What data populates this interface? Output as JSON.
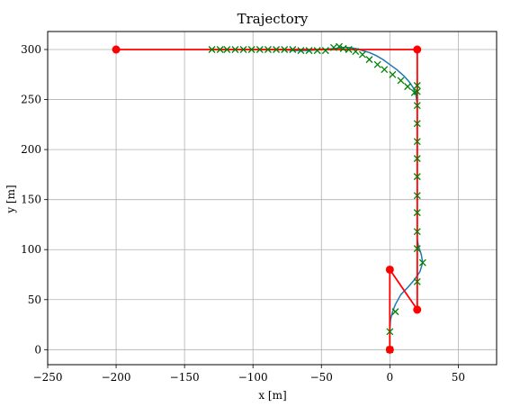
{
  "chart_data": {
    "type": "line",
    "title": "Trajectory",
    "xlabel": "x [m]",
    "ylabel": "y [m]",
    "xlim": [
      -250,
      78
    ],
    "ylim": [
      -15,
      318
    ],
    "xticks": [
      -250,
      -200,
      -150,
      -100,
      -50,
      0,
      50
    ],
    "yticks": [
      0,
      50,
      100,
      150,
      200,
      250,
      300
    ],
    "grid": true,
    "colors": {
      "red": "#ff0000",
      "blue": "#1f77b4",
      "green": "#008000"
    },
    "series": [
      {
        "style": "path-line",
        "color": "#1f77b4",
        "x": [
          0,
          0,
          0.5,
          2,
          4,
          8,
          13,
          18,
          22,
          24,
          23,
          21,
          20,
          20,
          20,
          20,
          20,
          20,
          20,
          19,
          17,
          14,
          10,
          5,
          0,
          -5,
          -10,
          -15,
          -20,
          -25,
          -30,
          -35,
          -40,
          -50,
          -60,
          -70,
          -80,
          -90,
          -100,
          -110,
          -120,
          -130
        ],
        "y": [
          0,
          20,
          30,
          38,
          45,
          55,
          62,
          70,
          78,
          87,
          95,
          103,
          110,
          130,
          160,
          190,
          220,
          240,
          245,
          255,
          262,
          268,
          274,
          280,
          285,
          290,
          294,
          297,
          299,
          301,
          302,
          302,
          301,
          300,
          299,
          299,
          300,
          300,
          300,
          300,
          300,
          300
        ]
      },
      {
        "style": "reference-line",
        "color": "#ff0000",
        "x": [
          0,
          0,
          20,
          20,
          20,
          -200
        ],
        "y": [
          0,
          80,
          40,
          300,
          300,
          300
        ]
      },
      {
        "style": "sample-x",
        "color": "#008000",
        "x": [
          0,
          0,
          4,
          24,
          20,
          20,
          20,
          20,
          20,
          20,
          20,
          20,
          20,
          20,
          20,
          20,
          18,
          13,
          8,
          2,
          -4,
          -9,
          -15,
          -20,
          -25,
          -30,
          -34,
          -37,
          -41,
          -47,
          -53,
          -59,
          -65,
          -71,
          -77,
          -83,
          -89,
          -95,
          -101,
          -107,
          -113,
          -119,
          -124,
          -130
        ],
        "y": [
          0,
          18,
          38,
          87,
          68,
          101,
          118,
          137,
          154,
          173,
          191,
          208,
          226,
          244,
          258,
          264,
          257,
          263,
          269,
          275,
          280,
          285,
          290,
          295,
          298,
          300,
          301,
          303,
          302,
          299,
          299,
          299,
          299,
          300,
          300,
          300,
          300,
          300,
          300,
          300,
          300,
          300,
          300,
          300
        ]
      }
    ],
    "waypoints": {
      "color": "#ff0000",
      "x": [
        0,
        0,
        20,
        20,
        -200
      ],
      "y": [
        0,
        80,
        40,
        300,
        300
      ]
    }
  }
}
